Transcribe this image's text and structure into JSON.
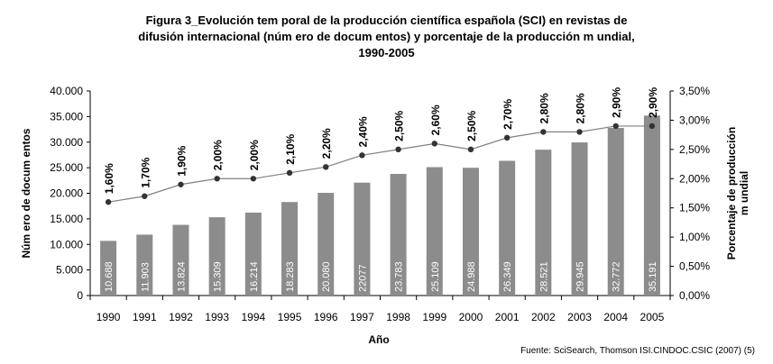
{
  "chart_data": {
    "type": "bar",
    "title_lines": [
      "Figura 3_Evolución tem poral de la producción científica española (SCI) en revistas de",
      "difusión internacional (núm ero de docum entos) y porcentaje de la producción m undial,",
      "1990-2005"
    ],
    "xlabel": "Año",
    "ylabel": "Núm ero de docum entos",
    "y2label_lines": [
      "Porcentaje de producción",
      "m undial"
    ],
    "categories": [
      "1990",
      "1991",
      "1992",
      "1993",
      "1994",
      "1995",
      "1996",
      "1997",
      "1998",
      "1999",
      "2000",
      "2001",
      "2002",
      "2003",
      "2004",
      "2005"
    ],
    "bars": {
      "values": [
        10688,
        11903,
        13824,
        15309,
        16214,
        18283,
        20080,
        22077,
        23783,
        25109,
        24988,
        26349,
        28521,
        29945,
        32772,
        35191
      ],
      "labels": [
        "10.688",
        "11.903",
        "13.824",
        "15.309",
        "16.214",
        "18.283",
        "20.080",
        "22077",
        "23.783",
        "25.109",
        "24.988",
        "26.349",
        "28.521",
        "29.945",
        "32.772",
        "35.191"
      ],
      "color": "#8c8c8c",
      "label_color": "#ffffff"
    },
    "line": {
      "type": "line",
      "axis": "right",
      "values": [
        1.6,
        1.7,
        1.9,
        2.0,
        2.0,
        2.1,
        2.2,
        2.4,
        2.5,
        2.6,
        2.5,
        2.7,
        2.8,
        2.8,
        2.9,
        2.9
      ],
      "labels": [
        "1,60%",
        "1,70%",
        "1,90%",
        "2,00%",
        "2,00%",
        "2,10%",
        "2,20%",
        "2,40%",
        "2,50%",
        "2,60%",
        "2,50%",
        "2,70%",
        "2,80%",
        "2,80%",
        "2,90%",
        "2,90%"
      ],
      "color": "#808080",
      "marker_color": "#333333"
    },
    "ylim": [
      0,
      40000
    ],
    "yticks": [
      "0",
      "5.000",
      "10.000",
      "15.000",
      "20.000",
      "25.000",
      "30.000",
      "35.000",
      "40.000"
    ],
    "y2lim": [
      0,
      3.5
    ],
    "y2ticks": [
      "0,00%",
      "0,50%",
      "1,00%",
      "1,50%",
      "2,00%",
      "2,50%",
      "3,00%",
      "3,50%"
    ],
    "grid": false,
    "legend": "none"
  },
  "source": "Fuente: SciSearch, Thomson ISI.CINDOC.CSIC (2007) (5)"
}
